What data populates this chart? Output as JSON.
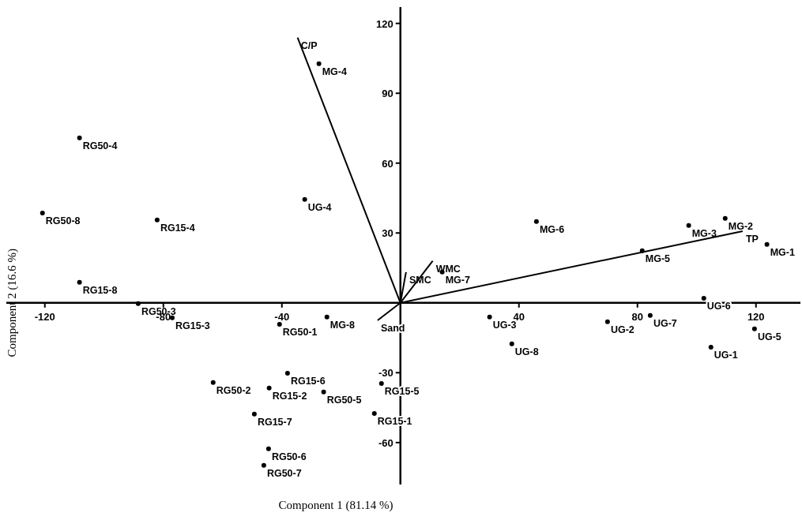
{
  "chart_data": {
    "type": "scatter",
    "xlabel": "Component 1 (81.14 %)",
    "ylabel": "Component 2 (16.6 %)",
    "xlim": [
      -133,
      135
    ],
    "ylim": [
      -78,
      127
    ],
    "xticks": [
      -120,
      -80,
      -40,
      40,
      80,
      120
    ],
    "yticks": [
      -60,
      -30,
      30,
      60,
      90,
      120
    ],
    "grid": false,
    "series": [
      {
        "type": "scatter",
        "marker": "circle",
        "color": "#000000",
        "x": [
          -108.3,
          -120.8,
          -82.1,
          -32.3,
          -27.5,
          45.9,
          97.3,
          109.6,
          123.7,
          81.6,
          -108.3,
          -88.5,
          -77,
          -40.8,
          -24.8,
          -38.1,
          -63.2,
          -44.3,
          -25.9,
          -6.4,
          -49.3,
          -8.8,
          -44.5,
          -46.1,
          14.1,
          30.1,
          37.6,
          69.9,
          84.3,
          102.4,
          119.5,
          104.8
        ],
        "values": [
          70.8,
          38.6,
          35.6,
          44.4,
          102.7,
          34.9,
          33.2,
          36.3,
          25.1,
          22.4,
          8.8,
          -0.3,
          -6.4,
          -9.2,
          -6.1,
          -30.2,
          -34.2,
          -36.6,
          -38.3,
          -34.6,
          -47.8,
          -47.5,
          -62.7,
          -69.8,
          13.2,
          -6.1,
          -17.6,
          -8.1,
          -5.4,
          2,
          -11.2,
          -19
        ]
      },
      {
        "type": "line",
        "marker": "none",
        "color": "#000000",
        "x": [
          0,
          -34.7,
          null,
          0,
          115.5,
          null,
          0,
          10.9,
          null,
          0,
          1.9,
          null,
          0,
          -7.7
        ],
        "values": [
          0,
          113.9,
          null,
          0,
          30.8,
          null,
          0,
          18,
          null,
          0,
          13.2,
          null,
          0,
          -7.5
        ]
      }
    ],
    "annotations": [
      {
        "text": "RG50-4",
        "x": -108.3,
        "y": 70.8
      },
      {
        "text": "RG50-8",
        "x": -120.8,
        "y": 38.6
      },
      {
        "text": "RG15-4",
        "x": -82.1,
        "y": 35.6
      },
      {
        "text": "UG-4",
        "x": -32.3,
        "y": 44.4
      },
      {
        "text": "MG-4",
        "x": -27.5,
        "y": 102.7
      },
      {
        "text": "MG-6",
        "x": 45.9,
        "y": 34.9
      },
      {
        "text": "MG-3",
        "x": 97.3,
        "y": 33.2
      },
      {
        "text": "MG-2",
        "x": 109.6,
        "y": 36.3
      },
      {
        "text": "MG-1",
        "x": 123.7,
        "y": 25.1
      },
      {
        "text": "MG-5",
        "x": 81.6,
        "y": 22.4
      },
      {
        "text": "RG15-8",
        "x": -108.3,
        "y": 8.8
      },
      {
        "text": "RG50-3",
        "x": -88.5,
        "y": -0.3
      },
      {
        "text": "RG15-3",
        "x": -77,
        "y": -6.4
      },
      {
        "text": "RG50-1",
        "x": -40.8,
        "y": -9.2
      },
      {
        "text": "MG-8",
        "x": -24.8,
        "y": -6.1
      },
      {
        "text": "RG15-6",
        "x": -38.1,
        "y": -30.2
      },
      {
        "text": "RG50-2",
        "x": -63.2,
        "y": -34.2
      },
      {
        "text": "RG15-2",
        "x": -44.3,
        "y": -36.6
      },
      {
        "text": "RG50-5",
        "x": -25.9,
        "y": -38.3
      },
      {
        "text": "RG15-5",
        "x": -6.4,
        "y": -34.6
      },
      {
        "text": "RG15-7",
        "x": -49.3,
        "y": -47.8
      },
      {
        "text": "RG15-1",
        "x": -8.8,
        "y": -47.5
      },
      {
        "text": "RG50-6",
        "x": -44.5,
        "y": -62.7
      },
      {
        "text": "RG50-7",
        "x": -46.1,
        "y": -69.8
      },
      {
        "text": "MG-7",
        "x": 14.1,
        "y": 13.2
      },
      {
        "text": "UG-3",
        "x": 30.1,
        "y": -6.1
      },
      {
        "text": "UG-8",
        "x": 37.6,
        "y": -17.6
      },
      {
        "text": "UG-2",
        "x": 69.9,
        "y": -8.1
      },
      {
        "text": "UG-7",
        "x": 84.3,
        "y": -5.4
      },
      {
        "text": "UG-6",
        "x": 102.4,
        "y": 2
      },
      {
        "text": "UG-5",
        "x": 119.5,
        "y": -11.2
      },
      {
        "text": "UG-1",
        "x": 104.8,
        "y": -19
      },
      {
        "text": "C/P",
        "x": -34.7,
        "y": 113.9
      },
      {
        "text": "TP",
        "x": 115.5,
        "y": 30.8
      },
      {
        "text": "WMC",
        "x": 10.9,
        "y": 18
      },
      {
        "text": "SMC",
        "x": 1.9,
        "y": 13.2
      },
      {
        "text": "Sand",
        "x": -7.7,
        "y": -7.5
      }
    ]
  }
}
